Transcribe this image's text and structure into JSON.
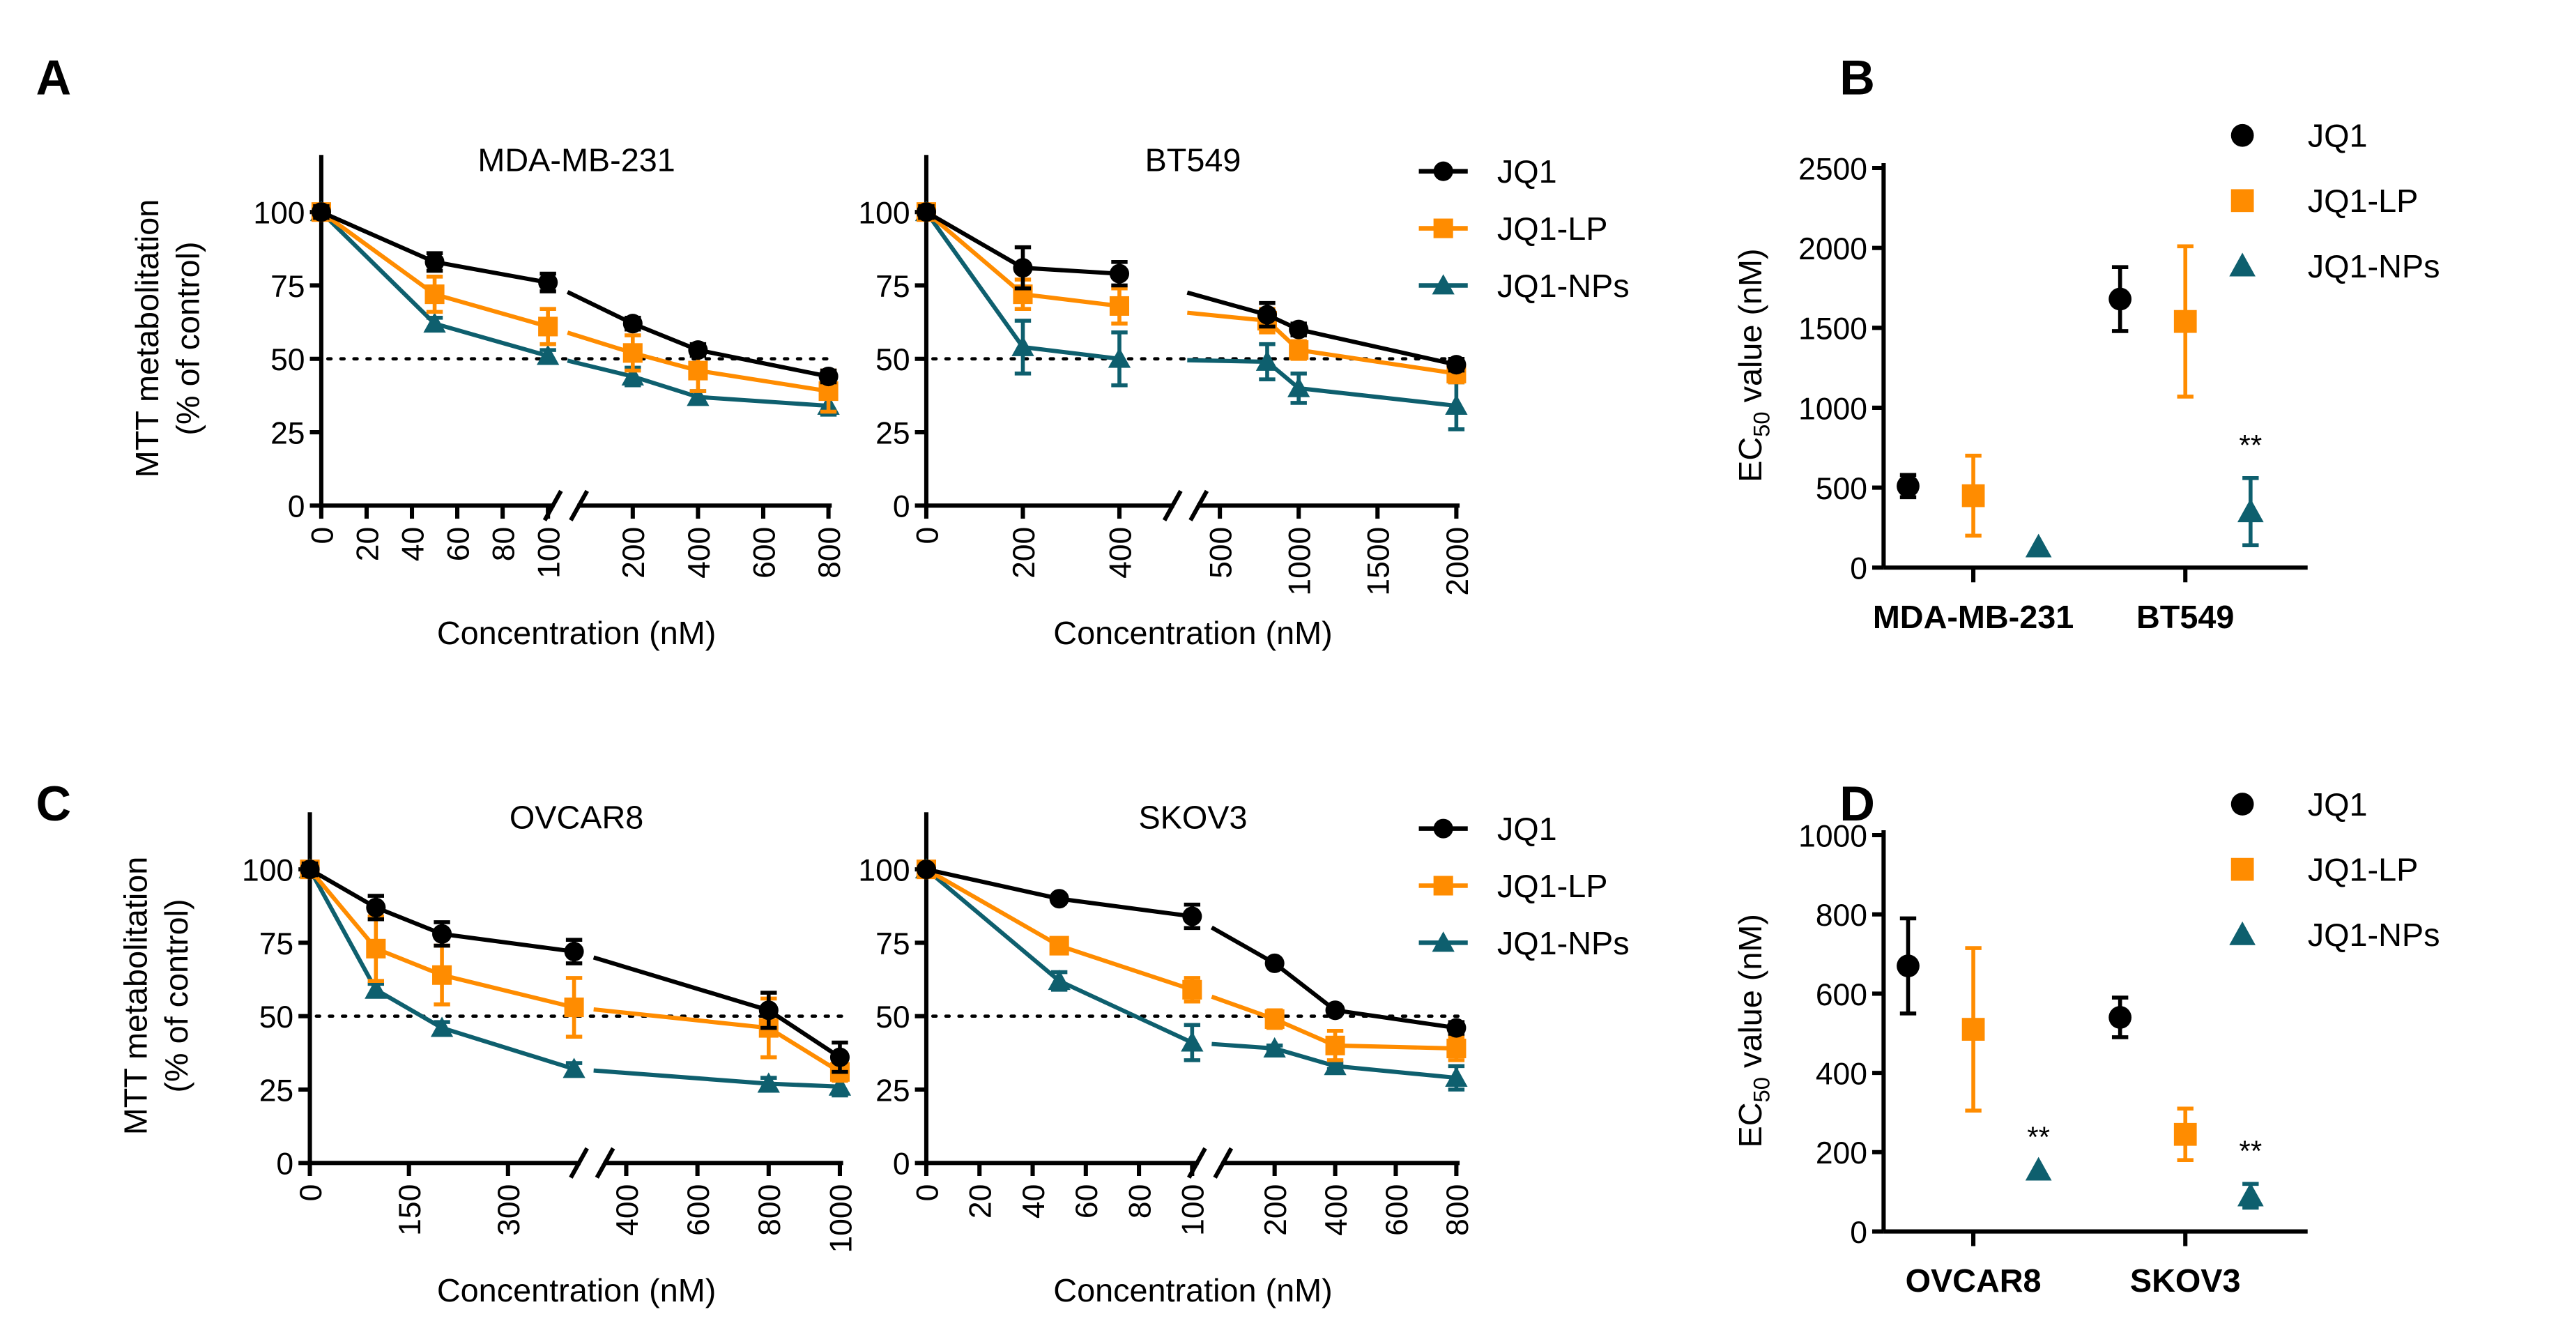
{
  "figure": {
    "panel_labels": [
      "A",
      "B",
      "C",
      "D"
    ],
    "series_colors": {
      "JQ1": "#000000",
      "JQ1-LP": "#ff8c00",
      "JQ1-NPs": "#0e5f6e"
    },
    "reference_line": {
      "y": 50,
      "style": "dotted"
    }
  },
  "chart_data": [
    {
      "panel": "A",
      "type": "line",
      "title": "MDA-MB-231",
      "xlabel": "Concentration (nM)",
      "ylabel": "MTT metabolitation\n(% of control)",
      "ylim": [
        0,
        120
      ],
      "yticks": [
        0,
        25,
        50,
        75,
        100
      ],
      "x_segments": [
        {
          "range": [
            0,
            100
          ],
          "ticks": [
            0,
            20,
            40,
            60,
            80,
            100
          ]
        },
        {
          "range": [
            100,
            800
          ],
          "ticks": [
            200,
            400,
            600,
            800
          ]
        }
      ],
      "axis_break": true,
      "x": [
        0,
        50,
        100,
        200,
        400,
        800
      ],
      "series": [
        {
          "name": "JQ1",
          "marker": "circle",
          "values": [
            100,
            83,
            76,
            62,
            53,
            44
          ],
          "errors": [
            2,
            3,
            3,
            2,
            2,
            2
          ]
        },
        {
          "name": "JQ1-LP",
          "marker": "square",
          "values": [
            100,
            72,
            61,
            52,
            46,
            39
          ],
          "errors": [
            2,
            6,
            6,
            6,
            7,
            7
          ]
        },
        {
          "name": "JQ1-NPs",
          "marker": "triangle",
          "values": [
            100,
            62,
            51,
            44,
            37,
            34
          ],
          "errors": [
            1,
            2,
            2,
            3,
            2,
            3
          ]
        }
      ]
    },
    {
      "panel": "A",
      "type": "line",
      "title": "BT549",
      "xlabel": "Concentration (nM)",
      "ylabel": "",
      "ylim": [
        0,
        120
      ],
      "yticks": [
        0,
        25,
        50,
        75,
        100
      ],
      "x_segments": [
        {
          "range": [
            0,
            500
          ],
          "ticks": [
            0,
            200,
            400
          ]
        },
        {
          "range": [
            500,
            2000
          ],
          "ticks": [
            500,
            1000,
            1500,
            2000
          ]
        }
      ],
      "axis_break": true,
      "x": [
        0,
        200,
        400,
        800,
        1000,
        2000
      ],
      "series": [
        {
          "name": "JQ1",
          "marker": "circle",
          "values": [
            100,
            81,
            79,
            65,
            60,
            48
          ],
          "errors": [
            2,
            7,
            4,
            4,
            2,
            2
          ]
        },
        {
          "name": "JQ1-LP",
          "marker": "square",
          "values": [
            100,
            72,
            68,
            63,
            53,
            45
          ],
          "errors": [
            2,
            5,
            6,
            4,
            3,
            3
          ]
        },
        {
          "name": "JQ1-NPs",
          "marker": "triangle",
          "values": [
            100,
            54,
            50,
            49,
            40,
            34
          ],
          "errors": [
            1,
            9,
            9,
            6,
            5,
            8
          ]
        }
      ],
      "legend": {
        "placement": "right",
        "entries": [
          "JQ1",
          "JQ1-LP",
          "JQ1-NPs"
        ]
      }
    },
    {
      "panel": "B",
      "type": "scatter",
      "title": "",
      "xlabel": "",
      "ylabel": "EC50 value (nM)",
      "ylim": [
        0,
        2500
      ],
      "yticks": [
        0,
        500,
        1000,
        1500,
        2000,
        2500
      ],
      "categories": [
        "MDA-MB-231",
        "BT549"
      ],
      "series": [
        {
          "name": "JQ1",
          "marker": "circle",
          "values": [
            510,
            1680
          ],
          "errors": [
            70,
            200
          ]
        },
        {
          "name": "JQ1-LP",
          "marker": "square",
          "values": [
            450,
            1540
          ],
          "errors": [
            250,
            470
          ]
        },
        {
          "name": "JQ1-NPs",
          "marker": "triangle",
          "values": [
            130,
            350
          ],
          "errors": [
            0,
            210
          ]
        }
      ],
      "annotations": [
        {
          "category": "BT549",
          "series": "JQ1-NPs",
          "text": "**"
        }
      ],
      "legend": {
        "placement": "top-right",
        "entries": [
          "JQ1",
          "JQ1-LP",
          "JQ1-NPs"
        ]
      }
    },
    {
      "panel": "C",
      "type": "line",
      "title": "OVCAR8",
      "xlabel": "Concentration (nM)",
      "ylabel": "MTT metabolitation\n(% of control)",
      "ylim": [
        0,
        120
      ],
      "yticks": [
        0,
        25,
        50,
        75,
        100
      ],
      "x_segments": [
        {
          "range": [
            0,
            400
          ],
          "ticks": [
            0,
            150,
            300
          ]
        },
        {
          "range": [
            400,
            1000
          ],
          "ticks": [
            400,
            600,
            800,
            1000
          ]
        }
      ],
      "axis_break": true,
      "x": [
        0,
        100,
        200,
        400,
        800,
        1000
      ],
      "series": [
        {
          "name": "JQ1",
          "marker": "circle",
          "values": [
            100,
            87,
            78,
            72,
            52,
            36
          ],
          "errors": [
            2,
            4,
            4,
            4,
            6,
            5
          ]
        },
        {
          "name": "JQ1-LP",
          "marker": "square",
          "values": [
            100,
            73,
            64,
            53,
            46,
            31
          ],
          "errors": [
            2,
            11,
            10,
            10,
            10,
            3
          ]
        },
        {
          "name": "JQ1-NPs",
          "marker": "triangle",
          "values": [
            100,
            59,
            46,
            32,
            27,
            26
          ],
          "errors": [
            1,
            2,
            2,
            2,
            2,
            3
          ]
        }
      ]
    },
    {
      "panel": "C",
      "type": "line",
      "title": "SKOV3",
      "xlabel": "Concentration (nM)",
      "ylabel": "",
      "ylim": [
        0,
        120
      ],
      "yticks": [
        0,
        25,
        50,
        75,
        100
      ],
      "x_segments": [
        {
          "range": [
            0,
            100
          ],
          "ticks": [
            0,
            20,
            40,
            60,
            80,
            100
          ]
        },
        {
          "range": [
            100,
            800
          ],
          "ticks": [
            200,
            400,
            600,
            800
          ]
        }
      ],
      "axis_break": true,
      "x": [
        0,
        50,
        100,
        200,
        400,
        800
      ],
      "series": [
        {
          "name": "JQ1",
          "marker": "circle",
          "values": [
            100,
            90,
            84,
            68,
            52,
            46
          ],
          "errors": [
            1,
            1,
            4,
            1,
            1,
            2
          ]
        },
        {
          "name": "JQ1-LP",
          "marker": "square",
          "values": [
            100,
            74,
            59,
            49,
            40,
            39
          ],
          "errors": [
            2,
            2,
            4,
            3,
            5,
            4
          ]
        },
        {
          "name": "JQ1-NPs",
          "marker": "triangle",
          "values": [
            100,
            62,
            41,
            39,
            33,
            29
          ],
          "errors": [
            1,
            3,
            6,
            1,
            1,
            4
          ]
        }
      ],
      "legend": {
        "placement": "right",
        "entries": [
          "JQ1",
          "JQ1-LP",
          "JQ1-NPs"
        ]
      }
    },
    {
      "panel": "D",
      "type": "scatter",
      "title": "",
      "xlabel": "",
      "ylabel": "EC50 value (nM)",
      "ylim": [
        0,
        1000
      ],
      "yticks": [
        0,
        200,
        400,
        600,
        800,
        1000
      ],
      "categories": [
        "OVCAR8",
        "SKOV3"
      ],
      "series": [
        {
          "name": "JQ1",
          "marker": "circle",
          "values": [
            670,
            540
          ],
          "errors": [
            120,
            50
          ]
        },
        {
          "name": "JQ1-LP",
          "marker": "square",
          "values": [
            510,
            245
          ],
          "errors": [
            205,
            65
          ]
        },
        {
          "name": "JQ1-NPs",
          "marker": "triangle",
          "values": [
            155,
            90
          ],
          "errors": [
            0,
            30
          ]
        }
      ],
      "annotations": [
        {
          "category": "OVCAR8",
          "series": "JQ1-NPs",
          "text": "**"
        },
        {
          "category": "SKOV3",
          "series": "JQ1-NPs",
          "text": "**"
        }
      ],
      "legend": {
        "placement": "top-right",
        "entries": [
          "JQ1",
          "JQ1-LP",
          "JQ1-NPs"
        ]
      }
    }
  ]
}
